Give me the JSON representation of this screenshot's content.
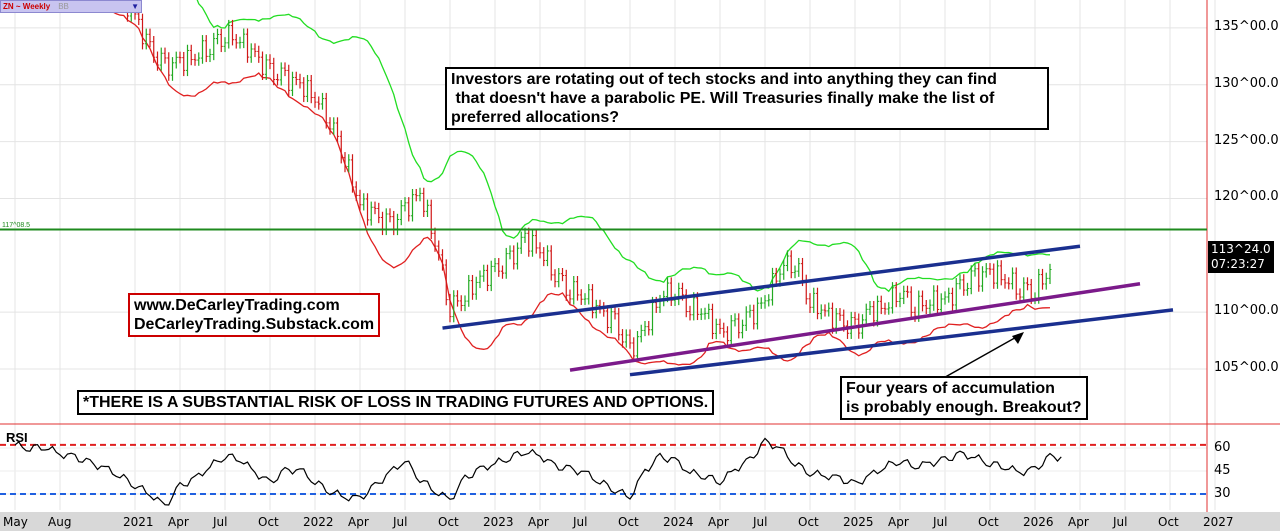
{
  "header": {
    "symbol": "ZN ~ Weekly",
    "study": "BB"
  },
  "chart_data": {
    "type": "ohlc",
    "title": "ZN ~ Weekly",
    "price_axis": {
      "ticks": [
        "135^00.0",
        "130^00.0",
        "125^00.0",
        "120^00.0",
        "110^00.0",
        "105^00.0"
      ],
      "tick_values": [
        135,
        130,
        125,
        120,
        110,
        105
      ],
      "ylim": [
        100.5,
        139.5
      ]
    },
    "last_price": {
      "label": "113^24.0",
      "time": "07:23:27",
      "value": 113.75
    },
    "horizontal_line": {
      "label": "117^08.5",
      "value": 117.27,
      "color": "#1e8a1e"
    },
    "x_labels": [
      "May",
      "Aug",
      "2021",
      "Apr",
      "Jul",
      "Oct",
      "2022",
      "Apr",
      "Jul",
      "Oct",
      "2023",
      "Apr",
      "Jul",
      "Oct",
      "2024",
      "Apr",
      "Jul",
      "Oct",
      "2025",
      "Apr",
      "Jul",
      "Oct",
      "2026",
      "Apr",
      "Jul",
      "Oct",
      "2027"
    ],
    "x_label_months": [
      0,
      3,
      8,
      11,
      14,
      17,
      20,
      23,
      26,
      29,
      32,
      35,
      38,
      41,
      44,
      47,
      50,
      53,
      56,
      59,
      62,
      65,
      68,
      71,
      74,
      77,
      80
    ],
    "start_month": "May 2020",
    "monthly_close": [
      139,
      139.2,
      139.5,
      139,
      139,
      138.5,
      138.2,
      137.5,
      136,
      133,
      131.5,
      132,
      132.5,
      133.5,
      134.5,
      134,
      132.5,
      131,
      130.5,
      130,
      129,
      127,
      123.5,
      119.5,
      118.5,
      117.5,
      119,
      120.5,
      116.5,
      110.5,
      111.5,
      113,
      113.5,
      114.5,
      116.5,
      115.5,
      113.5,
      112,
      111.5,
      110,
      109,
      106.5,
      108.5,
      111.5,
      112,
      110.5,
      110,
      108,
      108.5,
      109.5,
      111,
      114,
      114.5,
      111,
      110,
      109,
      108.5,
      110,
      110.5,
      112,
      110.5,
      111,
      111,
      112,
      113,
      113.5,
      113,
      112.2,
      112,
      113.75
    ],
    "trendlines": [
      {
        "name": "upper-channel",
        "color": "#1a2f8f",
        "from": [
          28.5,
          108.6
        ],
        "to": [
          71,
          115.8
        ]
      },
      {
        "name": "mid-channel",
        "color": "#7b1a8a",
        "from": [
          37,
          104.9
        ],
        "to": [
          75,
          112.5
        ]
      },
      {
        "name": "lower-channel",
        "color": "#1a2f8f",
        "from": [
          41,
          104.5
        ],
        "to": [
          77.2,
          110.2
        ]
      }
    ],
    "rsi": {
      "label": "RSI",
      "ticks": [
        "60",
        "45",
        "30"
      ],
      "tick_values": [
        60,
        45,
        30
      ],
      "overbought": 62,
      "oversold": 30,
      "monthly": [
        62,
        60,
        61,
        56,
        54,
        50,
        47,
        42,
        36,
        30,
        22,
        35,
        40,
        48,
        55,
        53,
        44,
        37,
        45,
        46,
        38,
        32,
        28,
        27,
        35,
        44,
        52,
        40,
        32,
        26,
        40,
        46,
        50,
        54,
        58,
        55,
        48,
        46,
        44,
        38,
        33,
        28,
        45,
        54,
        52,
        44,
        42,
        38,
        46,
        52,
        64,
        60,
        50,
        44,
        42,
        40,
        36,
        42,
        48,
        52,
        48,
        50,
        52,
        56,
        54,
        50,
        48,
        44,
        46,
        54
      ]
    }
  },
  "annotations": {
    "main": "Investors are rotating out of tech stocks and into anything they can find\n that doesn't have a parabolic PE. Will Treasuries finally make the list of\npreferred allocations?",
    "site1": "www.DeCarleyTrading.com",
    "site2": "DeCarleyTrading.Substack.com",
    "risk": "*THERE IS A SUBSTANTIAL RISK OF LOSS IN TRADING FUTURES AND OPTIONS.",
    "breakout_line1": "Four years of accumulation",
    "breakout_line2": "is probably enough. Breakout?"
  }
}
